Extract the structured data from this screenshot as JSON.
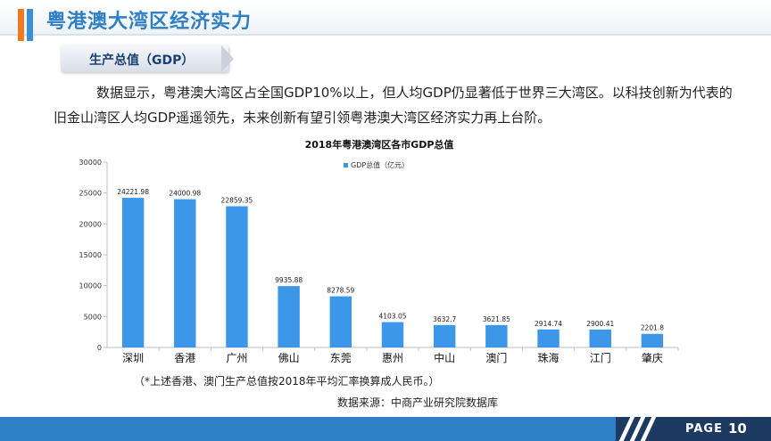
{
  "header": {
    "title": "粤港澳大湾区经济实力"
  },
  "section": {
    "label": "生产总值（GDP）"
  },
  "paragraph": "数据显示，粤港澳大湾区占全国GDP10%以上，但人均GDP仍显著低于世界三大湾区。以科技创新为代表的旧金山湾区人均GDP遥遥领先，未来创新有望引领粤港澳大湾区经济实力再上台阶。",
  "chart_data": {
    "type": "bar",
    "title": "2018年粤港澳湾区各市GDP总值",
    "categories": [
      "深圳",
      "香港",
      "广州",
      "佛山",
      "东莞",
      "惠州",
      "中山",
      "澳门",
      "珠海",
      "江门",
      "肇庆"
    ],
    "series": [
      {
        "name": "GDP总值（亿元）",
        "values": [
          24221.98,
          24000.98,
          22859.35,
          9935.88,
          8278.59,
          4103.05,
          3632.7,
          3621.85,
          2914.74,
          2900.41,
          2201.8
        ],
        "labels": [
          "24221.98",
          "24000.98",
          "22859.35",
          "9935.88",
          "8278.59",
          "4103.05",
          "3632.7",
          "3621.85",
          "2914.74",
          "2900.41",
          "2201.8"
        ]
      }
    ],
    "ylim": [
      0,
      30000
    ],
    "yticks": [
      "0",
      "5000",
      "10000",
      "15000",
      "20000",
      "25000",
      "30000"
    ],
    "legend_position": "top-center",
    "grid": false,
    "bar_color": "#3c97e8"
  },
  "footnote": "（*上述香港、澳门生产总值按2018年平均汇率换算成人民币。）",
  "source": "数据来源：中商产业研究院数据库",
  "footer": {
    "page_label": "PAGE",
    "page_number": "10"
  }
}
